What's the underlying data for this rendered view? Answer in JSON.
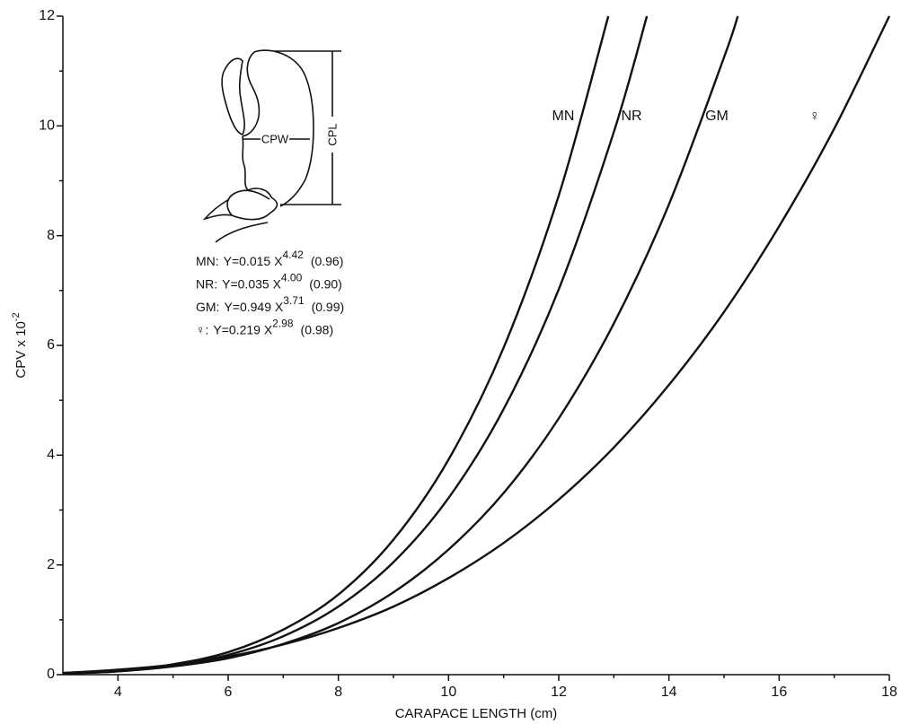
{
  "chart_data": {
    "type": "line",
    "x_label": "CARAPACE LENGTH (cm)",
    "y_label": "CPV x 10",
    "y_label_exponent": "-2",
    "xlim": [
      3,
      18
    ],
    "ylim": [
      0,
      12
    ],
    "xticks": [
      4,
      6,
      8,
      10,
      12,
      14,
      16,
      18
    ],
    "yticks": [
      0,
      2,
      4,
      6,
      8,
      10,
      12
    ],
    "xminor": [
      5,
      7,
      9,
      11,
      13,
      15,
      17
    ],
    "yminor": [
      1,
      3,
      5,
      7,
      9,
      11
    ],
    "series": [
      {
        "name": "MN",
        "color": "#111111",
        "x": [
          3,
          4,
          5,
          6,
          7,
          8,
          9,
          10,
          11,
          12,
          12.9
        ],
        "values": [
          0.02,
          0.07,
          0.19,
          0.41,
          0.82,
          1.46,
          2.46,
          3.92,
          5.96,
          8.73,
          12
        ]
      },
      {
        "name": "NR",
        "color": "#111111",
        "x": [
          3,
          4,
          5,
          6,
          7,
          8,
          9,
          10,
          11,
          12,
          13,
          13.6
        ],
        "values": [
          0.02,
          0.06,
          0.17,
          0.36,
          0.7,
          1.24,
          2.05,
          3.22,
          4.84,
          7.02,
          9.89,
          12
        ]
      },
      {
        "name": "GM",
        "color": "#111111",
        "x": [
          3,
          4,
          5,
          6,
          7,
          8,
          9,
          10,
          11,
          12,
          13,
          14,
          15,
          15.25
        ],
        "values": [
          0.02,
          0.06,
          0.15,
          0.3,
          0.56,
          0.94,
          1.5,
          2.28,
          3.31,
          4.67,
          6.4,
          8.57,
          11.25,
          12
        ]
      },
      {
        "name": "♀",
        "color": "#111111",
        "x": [
          3,
          4,
          5,
          6,
          7,
          8,
          9,
          10,
          11,
          12,
          13,
          14,
          15,
          16,
          17,
          18
        ],
        "values": [
          0.03,
          0.09,
          0.18,
          0.33,
          0.55,
          0.85,
          1.24,
          1.76,
          2.4,
          3.19,
          4.14,
          5.28,
          6.61,
          8.17,
          9.95,
          12
        ]
      }
    ],
    "equations": [
      {
        "label": "MN:",
        "formula": "Y=0.015 X",
        "exponent": "4.42",
        "fit": "(0.96)"
      },
      {
        "label": "NR:",
        "formula": "Y=0.035 X",
        "exponent": "4.00",
        "fit": "(0.90)"
      },
      {
        "label": "GM:",
        "formula": "Y=0.949 X",
        "exponent": "3.71",
        "fit": "(0.99)"
      },
      {
        "label": "♀:",
        "formula": "Y=0.219 X",
        "exponent": "2.98",
        "fit": "(0.98)"
      }
    ],
    "inset_labels": [
      "CPW",
      "CPL"
    ]
  }
}
